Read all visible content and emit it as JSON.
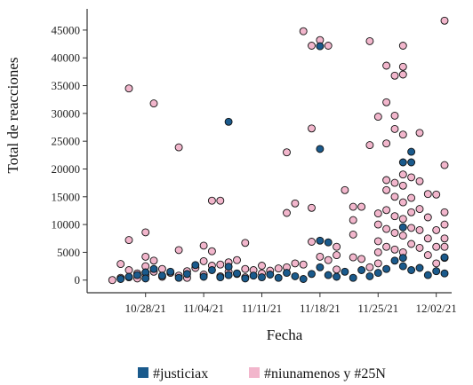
{
  "chart_data": {
    "type": "scatter",
    "xlabel": "Fecha",
    "ylabel": "Total de reacciones",
    "x_ticks": [
      "10/28/21",
      "11/04/21",
      "11/11/21",
      "11/18/21",
      "11/25/21",
      "12/02/21"
    ],
    "x_tick_dates": [
      "2021-10-28",
      "2021-11-04",
      "2021-11-11",
      "2021-11-18",
      "2021-11-25",
      "2021-12-02"
    ],
    "xlim": [
      "2021-10-23",
      "2021-12-03"
    ],
    "y_ticks": [
      "0",
      "5000",
      "10000",
      "15000",
      "20000",
      "25000",
      "30000",
      "35000",
      "40000",
      "45000"
    ],
    "y_tick_values": [
      0,
      5000,
      10000,
      15000,
      20000,
      25000,
      30000,
      35000,
      40000,
      45000
    ],
    "ylim": [
      -1000,
      48500
    ],
    "grid": false,
    "legend_position": "bottom",
    "colors": {
      "justiciax": "#1a5a8c",
      "niunamenos": "#f2b6cc",
      "outline": "#111111",
      "axis": "#333333"
    },
    "legend": [
      {
        "label": "#justiciax",
        "color": "#1a5a8c"
      },
      {
        "label": "#niunamenos y #25N",
        "color": "#f2b6cc"
      }
    ],
    "series": [
      {
        "name": "#niunamenos y #25N",
        "color": "#f2b6cc",
        "points": [
          [
            "2021-10-24",
            0
          ],
          [
            "2021-10-25",
            2900
          ],
          [
            "2021-10-25",
            400
          ],
          [
            "2021-10-26",
            34500
          ],
          [
            "2021-10-26",
            7200
          ],
          [
            "2021-10-26",
            1800
          ],
          [
            "2021-10-26",
            500
          ],
          [
            "2021-10-27",
            1200
          ],
          [
            "2021-10-27",
            300
          ],
          [
            "2021-10-28",
            8600
          ],
          [
            "2021-10-28",
            4200
          ],
          [
            "2021-10-28",
            2500
          ],
          [
            "2021-10-28",
            900
          ],
          [
            "2021-10-29",
            31800
          ],
          [
            "2021-10-29",
            3500
          ],
          [
            "2021-10-29",
            1500
          ],
          [
            "2021-10-30",
            2000
          ],
          [
            "2021-10-30",
            600
          ],
          [
            "2021-10-31",
            1300
          ],
          [
            "2021-11-01",
            23900
          ],
          [
            "2021-11-01",
            5400
          ],
          [
            "2021-11-01",
            800
          ],
          [
            "2021-11-02",
            1600
          ],
          [
            "2021-11-02",
            400
          ],
          [
            "2021-11-03",
            2200
          ],
          [
            "2021-11-04",
            6200
          ],
          [
            "2021-11-04",
            3400
          ],
          [
            "2021-11-04",
            1000
          ],
          [
            "2021-11-05",
            14300
          ],
          [
            "2021-11-05",
            5200
          ],
          [
            "2021-11-05",
            2600
          ],
          [
            "2021-11-06",
            14300
          ],
          [
            "2021-11-06",
            2800
          ],
          [
            "2021-11-06",
            700
          ],
          [
            "2021-11-07",
            3200
          ],
          [
            "2021-11-07",
            1500
          ],
          [
            "2021-11-08",
            3600
          ],
          [
            "2021-11-08",
            1100
          ],
          [
            "2021-11-09",
            6700
          ],
          [
            "2021-11-09",
            2000
          ],
          [
            "2021-11-09",
            500
          ],
          [
            "2021-11-10",
            1800
          ],
          [
            "2021-11-11",
            1200
          ],
          [
            "2021-11-11",
            2600
          ],
          [
            "2021-11-12",
            1700
          ],
          [
            "2021-11-13",
            2100
          ],
          [
            "2021-11-14",
            12100
          ],
          [
            "2021-11-14",
            2300
          ],
          [
            "2021-11-14",
            23000
          ],
          [
            "2021-11-15",
            13800
          ],
          [
            "2021-11-15",
            3000
          ],
          [
            "2021-11-16",
            44800
          ],
          [
            "2021-11-16",
            2800
          ],
          [
            "2021-11-17",
            42200
          ],
          [
            "2021-11-17",
            27300
          ],
          [
            "2021-11-17",
            13000
          ],
          [
            "2021-11-17",
            6900
          ],
          [
            "2021-11-18",
            43200
          ],
          [
            "2021-11-18",
            4200
          ],
          [
            "2021-11-19",
            42200
          ],
          [
            "2021-11-19",
            3600
          ],
          [
            "2021-11-20",
            6000
          ],
          [
            "2021-11-20",
            4500
          ],
          [
            "2021-11-20",
            1900
          ],
          [
            "2021-11-21",
            16200
          ],
          [
            "2021-11-22",
            13200
          ],
          [
            "2021-11-22",
            10800
          ],
          [
            "2021-11-22",
            8200
          ],
          [
            "2021-11-22",
            4100
          ],
          [
            "2021-11-23",
            13200
          ],
          [
            "2021-11-23",
            3800
          ],
          [
            "2021-11-24",
            43000
          ],
          [
            "2021-11-24",
            24300
          ],
          [
            "2021-11-24",
            2300
          ],
          [
            "2021-11-25",
            29400
          ],
          [
            "2021-11-25",
            12000
          ],
          [
            "2021-11-25",
            10000
          ],
          [
            "2021-11-25",
            7000
          ],
          [
            "2021-11-25",
            5000
          ],
          [
            "2021-11-25",
            3000
          ],
          [
            "2021-11-26",
            38600
          ],
          [
            "2021-11-26",
            32000
          ],
          [
            "2021-11-26",
            24600
          ],
          [
            "2021-11-26",
            18000
          ],
          [
            "2021-11-26",
            16200
          ],
          [
            "2021-11-26",
            12600
          ],
          [
            "2021-11-26",
            9200
          ],
          [
            "2021-11-26",
            6000
          ],
          [
            "2021-11-27",
            36800
          ],
          [
            "2021-11-27",
            29600
          ],
          [
            "2021-11-27",
            27200
          ],
          [
            "2021-11-27",
            17500
          ],
          [
            "2021-11-27",
            15000
          ],
          [
            "2021-11-27",
            11500
          ],
          [
            "2021-11-27",
            8500
          ],
          [
            "2021-11-27",
            5500
          ],
          [
            "2021-11-28",
            42200
          ],
          [
            "2021-11-28",
            38400
          ],
          [
            "2021-11-28",
            37000
          ],
          [
            "2021-11-28",
            26200
          ],
          [
            "2021-11-28",
            19000
          ],
          [
            "2021-11-28",
            17000
          ],
          [
            "2021-11-28",
            14000
          ],
          [
            "2021-11-28",
            11000
          ],
          [
            "2021-11-28",
            8000
          ],
          [
            "2021-11-28",
            5000
          ],
          [
            "2021-11-29",
            18500
          ],
          [
            "2021-11-29",
            14800
          ],
          [
            "2021-11-29",
            12200
          ],
          [
            "2021-11-29",
            9400
          ],
          [
            "2021-11-29",
            6500
          ],
          [
            "2021-11-30",
            26500
          ],
          [
            "2021-11-30",
            17800
          ],
          [
            "2021-11-30",
            12800
          ],
          [
            "2021-11-30",
            9000
          ],
          [
            "2021-11-30",
            5800
          ],
          [
            "2021-12-01",
            15500
          ],
          [
            "2021-12-01",
            11300
          ],
          [
            "2021-12-01",
            7500
          ],
          [
            "2021-12-01",
            4500
          ],
          [
            "2021-12-02",
            15400
          ],
          [
            "2021-12-02",
            9000
          ],
          [
            "2021-12-02",
            6000
          ],
          [
            "2021-12-02",
            3000
          ],
          [
            "2021-12-03",
            46700
          ],
          [
            "2021-12-03",
            20700
          ],
          [
            "2021-12-03",
            10000
          ],
          [
            "2021-12-03",
            7500
          ],
          [
            "2021-12-03",
            4000
          ],
          [
            "2021-12-03",
            12200
          ],
          [
            "2021-12-03",
            6000
          ]
        ]
      },
      {
        "name": "#justiciax",
        "color": "#1a5a8c",
        "points": [
          [
            "2021-10-25",
            200
          ],
          [
            "2021-10-26",
            600
          ],
          [
            "2021-10-27",
            900
          ],
          [
            "2021-10-28",
            1400
          ],
          [
            "2021-10-28",
            300
          ],
          [
            "2021-10-29",
            2000
          ],
          [
            "2021-10-30",
            800
          ],
          [
            "2021-10-31",
            1500
          ],
          [
            "2021-11-01",
            400
          ],
          [
            "2021-11-02",
            1100
          ],
          [
            "2021-11-03",
            2700
          ],
          [
            "2021-11-04",
            600
          ],
          [
            "2021-11-05",
            1800
          ],
          [
            "2021-11-06",
            500
          ],
          [
            "2021-11-07",
            28500
          ],
          [
            "2021-11-07",
            2400
          ],
          [
            "2021-11-07",
            900
          ],
          [
            "2021-11-08",
            1200
          ],
          [
            "2021-11-09",
            300
          ],
          [
            "2021-11-10",
            800
          ],
          [
            "2021-11-11",
            500
          ],
          [
            "2021-11-12",
            1000
          ],
          [
            "2021-11-13",
            400
          ],
          [
            "2021-11-14",
            1300
          ],
          [
            "2021-11-15",
            700
          ],
          [
            "2021-11-16",
            200
          ],
          [
            "2021-11-17",
            1100
          ],
          [
            "2021-11-18",
            42100
          ],
          [
            "2021-11-18",
            23600
          ],
          [
            "2021-11-18",
            7100
          ],
          [
            "2021-11-18",
            2300
          ],
          [
            "2021-11-19",
            6800
          ],
          [
            "2021-11-19",
            900
          ],
          [
            "2021-11-20",
            600
          ],
          [
            "2021-11-21",
            1500
          ],
          [
            "2021-11-22",
            400
          ],
          [
            "2021-11-23",
            1800
          ],
          [
            "2021-11-24",
            700
          ],
          [
            "2021-11-25",
            1300
          ],
          [
            "2021-11-26",
            2000
          ],
          [
            "2021-11-27",
            3500
          ],
          [
            "2021-11-28",
            21200
          ],
          [
            "2021-11-28",
            9500
          ],
          [
            "2021-11-28",
            4000
          ],
          [
            "2021-11-28",
            2500
          ],
          [
            "2021-11-29",
            23100
          ],
          [
            "2021-11-29",
            21200
          ],
          [
            "2021-11-29",
            1800
          ],
          [
            "2021-11-30",
            2200
          ],
          [
            "2021-12-01",
            900
          ],
          [
            "2021-12-02",
            1600
          ],
          [
            "2021-12-03",
            4100
          ],
          [
            "2021-12-03",
            1200
          ]
        ]
      }
    ]
  }
}
